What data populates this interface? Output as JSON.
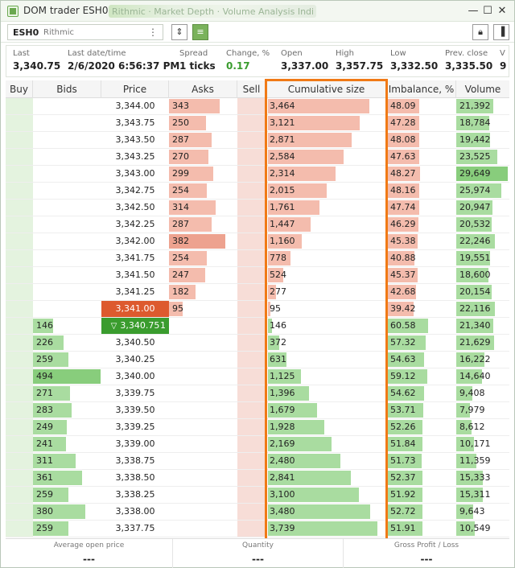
{
  "window": {
    "title": "DOM trader ESH0",
    "tab_blurred": "Rithmic · Market Depth · Volume Analysis Indicator",
    "controls": [
      "minimize-icon",
      "maximize-icon",
      "close-icon"
    ]
  },
  "toolbar": {
    "symbol": "ESH0",
    "connection": "Rithmic",
    "menu_glyph": "⋮"
  },
  "quotes": [
    {
      "label": "Last",
      "value": "3,340.75"
    },
    {
      "label": "Last date/time",
      "value": "2/6/2020 6:56:37 PM"
    },
    {
      "label": "Spread",
      "value": "1 ticks"
    },
    {
      "label": "Change, %",
      "value": "0.17"
    },
    {
      "label": "Open",
      "value": "3,337.00"
    },
    {
      "label": "High",
      "value": "3,357.75"
    },
    {
      "label": "Low",
      "value": "3,332.50"
    },
    {
      "label": "Prev. close",
      "value": "3,335.50"
    },
    {
      "label": "V",
      "value": "9"
    }
  ],
  "columns": {
    "buy": "Buy",
    "bids": "Bids",
    "price": "Price",
    "asks": "Asks",
    "sell": "Sell",
    "cumulative": "Cumulative size",
    "imbalance": "Imbalance, %",
    "volume": "Volume"
  },
  "rows": [
    {
      "price": "3,344.00",
      "bid": "",
      "ask": "343",
      "cum": "3,464",
      "imb": "48.09",
      "vol": "21,392"
    },
    {
      "price": "3,343.75",
      "bid": "",
      "ask": "250",
      "cum": "3,121",
      "imb": "47.28",
      "vol": "18,784"
    },
    {
      "price": "3,343.50",
      "bid": "",
      "ask": "287",
      "cum": "2,871",
      "imb": "48.08",
      "vol": "19,442"
    },
    {
      "price": "3,343.25",
      "bid": "",
      "ask": "270",
      "cum": "2,584",
      "imb": "47.63",
      "vol": "23,525"
    },
    {
      "price": "3,343.00",
      "bid": "",
      "ask": "299",
      "cum": "2,314",
      "imb": "48.27",
      "vol": "29,649"
    },
    {
      "price": "3,342.75",
      "bid": "",
      "ask": "254",
      "cum": "2,015",
      "imb": "48.16",
      "vol": "25,974"
    },
    {
      "price": "3,342.50",
      "bid": "",
      "ask": "314",
      "cum": "1,761",
      "imb": "47.74",
      "vol": "20,947"
    },
    {
      "price": "3,342.25",
      "bid": "",
      "ask": "287",
      "cum": "1,447",
      "imb": "46.29",
      "vol": "20,532"
    },
    {
      "price": "3,342.00",
      "bid": "",
      "ask": "382",
      "cum": "1,160",
      "imb": "45.38",
      "vol": "22,246"
    },
    {
      "price": "3,341.75",
      "bid": "",
      "ask": "254",
      "cum": "778",
      "imb": "40.88",
      "vol": "19,551"
    },
    {
      "price": "3,341.50",
      "bid": "",
      "ask": "247",
      "cum": "524",
      "imb": "45.37",
      "vol": "18,600"
    },
    {
      "price": "3,341.25",
      "bid": "",
      "ask": "182",
      "cum": "277",
      "imb": "42.68",
      "vol": "20,154"
    },
    {
      "price": "3,341.00",
      "bid": "",
      "ask": "95",
      "cum": "95",
      "imb": "39.42",
      "vol": "22,116"
    },
    {
      "price": "3,340.75",
      "bid": "146",
      "ask": "",
      "cum": "146",
      "imb": "60.58",
      "vol": "21,340",
      "last_count": "1"
    },
    {
      "price": "3,340.50",
      "bid": "226",
      "ask": "",
      "cum": "372",
      "imb": "57.32",
      "vol": "21,629"
    },
    {
      "price": "3,340.25",
      "bid": "259",
      "ask": "",
      "cum": "631",
      "imb": "54.63",
      "vol": "16,222"
    },
    {
      "price": "3,340.00",
      "bid": "494",
      "ask": "",
      "cum": "1,125",
      "imb": "59.12",
      "vol": "14,640"
    },
    {
      "price": "3,339.75",
      "bid": "271",
      "ask": "",
      "cum": "1,396",
      "imb": "54.62",
      "vol": "9,408"
    },
    {
      "price": "3,339.50",
      "bid": "283",
      "ask": "",
      "cum": "1,679",
      "imb": "53.71",
      "vol": "7,979"
    },
    {
      "price": "3,339.25",
      "bid": "249",
      "ask": "",
      "cum": "1,928",
      "imb": "52.26",
      "vol": "8,612"
    },
    {
      "price": "3,339.00",
      "bid": "241",
      "ask": "",
      "cum": "2,169",
      "imb": "51.84",
      "vol": "10,171"
    },
    {
      "price": "3,338.75",
      "bid": "311",
      "ask": "",
      "cum": "2,480",
      "imb": "51.73",
      "vol": "11,359"
    },
    {
      "price": "3,338.50",
      "bid": "361",
      "ask": "",
      "cum": "2,841",
      "imb": "52.37",
      "vol": "15,333"
    },
    {
      "price": "3,338.25",
      "bid": "259",
      "ask": "",
      "cum": "3,100",
      "imb": "51.92",
      "vol": "15,311"
    },
    {
      "price": "3,338.00",
      "bid": "380",
      "ask": "",
      "cum": "3,480",
      "imb": "52.72",
      "vol": "9,643"
    },
    {
      "price": "3,337.75",
      "bid": "259",
      "ask": "",
      "cum": "3,739",
      "imb": "51.91",
      "vol": "10,549"
    }
  ],
  "footer": [
    {
      "label": "Average open price",
      "value": "---"
    },
    {
      "label": "Quantity",
      "value": "---"
    },
    {
      "label": "Gross Profit / Loss",
      "value": "---"
    }
  ],
  "colors": {
    "accent_green": "#7ab25b",
    "best_ask": "#dd5a2e",
    "last_trade": "#3a9c2e",
    "highlight": "#f07a16"
  }
}
